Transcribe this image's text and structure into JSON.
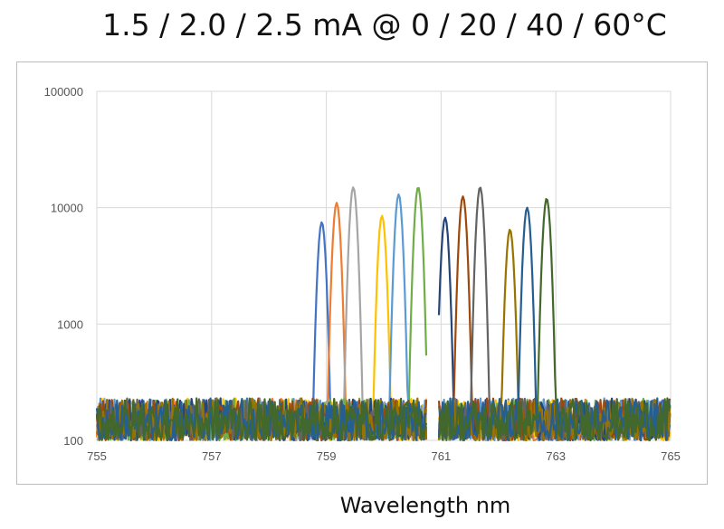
{
  "chart_data": {
    "type": "line",
    "title": "1.5 / 2.0 / 2.5 mA @ 0 / 20 / 40 / 60°C",
    "xlabel": "Wavelength nm",
    "ylabel": "",
    "xlim": [
      755,
      765
    ],
    "ylim": [
      100,
      100000
    ],
    "yscale": "log",
    "grid": true,
    "legend": "none",
    "xticks": [
      "755",
      "757",
      "759",
      "761",
      "763",
      "765"
    ],
    "yticks": [
      "100",
      "1000",
      "10000",
      "100000"
    ],
    "noise_floor": {
      "min": 100,
      "max": 230,
      "x_from": 755,
      "x_to": 765
    },
    "gap": [
      760.75,
      760.95
    ],
    "series": [
      {
        "color": "#4472c4",
        "peak_x": 758.92,
        "peak_y": 7500
      },
      {
        "color": "#ed7d31",
        "peak_x": 759.18,
        "peak_y": 11000
      },
      {
        "color": "#a5a5a5",
        "peak_x": 759.47,
        "peak_y": 15000
      },
      {
        "color": "#ffc000",
        "peak_x": 759.97,
        "peak_y": 8500
      },
      {
        "color": "#5b9bd5",
        "peak_x": 760.26,
        "peak_y": 13000
      },
      {
        "color": "#70ad47",
        "peak_x": 760.6,
        "peak_y": 15000
      },
      {
        "color": "#264478",
        "peak_x": 761.07,
        "peak_y": 8200
      },
      {
        "color": "#9e480e",
        "peak_x": 761.38,
        "peak_y": 12500
      },
      {
        "color": "#636363",
        "peak_x": 761.68,
        "peak_y": 15000
      },
      {
        "color": "#997300",
        "peak_x": 762.2,
        "peak_y": 6500
      },
      {
        "color": "#255e91",
        "peak_x": 762.5,
        "peak_y": 10000
      },
      {
        "color": "#43682b",
        "peak_x": 762.84,
        "peak_y": 12000
      }
    ]
  }
}
